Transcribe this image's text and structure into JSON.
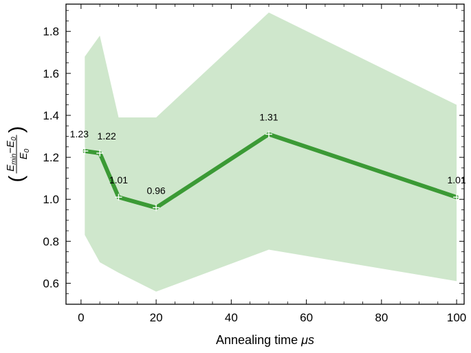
{
  "chart_data": {
    "type": "line",
    "title": "",
    "xlabel": "Annealing time μs",
    "xlabel_prefix": "Annealing time ",
    "xlabel_mu": "μ",
    "xlabel_unit": "s",
    "ylabel": "(E_min − E_0) / E_0",
    "ylabel_parts": {
      "num_E": "E",
      "num_sub_min": "min",
      "num_minus": "−E",
      "num_sub_0": "0",
      "den_E": "E",
      "den_sub_0": "0"
    },
    "xlim": [
      -4,
      102
    ],
    "ylim": [
      0.5,
      1.93
    ],
    "xticks": [
      0,
      20,
      40,
      60,
      80,
      100
    ],
    "yticks": [
      0.6,
      0.8,
      1.0,
      1.2,
      1.4,
      1.6,
      1.8
    ],
    "xtick_labels": [
      "0",
      "20",
      "40",
      "60",
      "80",
      "100"
    ],
    "ytick_labels": [
      "0.6",
      "0.8",
      "1.0",
      "1.2",
      "1.4",
      "1.6",
      "1.8"
    ],
    "grid": false,
    "series": [
      {
        "x": [
          1,
          5,
          10,
          20,
          50,
          100
        ],
        "y": [
          1.23,
          1.22,
          1.01,
          0.96,
          1.31,
          1.01
        ],
        "labels": [
          "1.23",
          "1.22",
          "1.01",
          "0.96",
          "1.31",
          "1.01"
        ],
        "color": "#3b9a35",
        "marker": "plus"
      }
    ],
    "band": {
      "x": [
        1,
        5,
        10,
        20,
        50,
        100
      ],
      "upper": [
        1.68,
        1.78,
        1.39,
        1.39,
        1.89,
        1.45
      ],
      "lower": [
        0.83,
        0.7,
        0.65,
        0.56,
        0.76,
        0.61
      ],
      "color": "#cfe7cc"
    }
  }
}
